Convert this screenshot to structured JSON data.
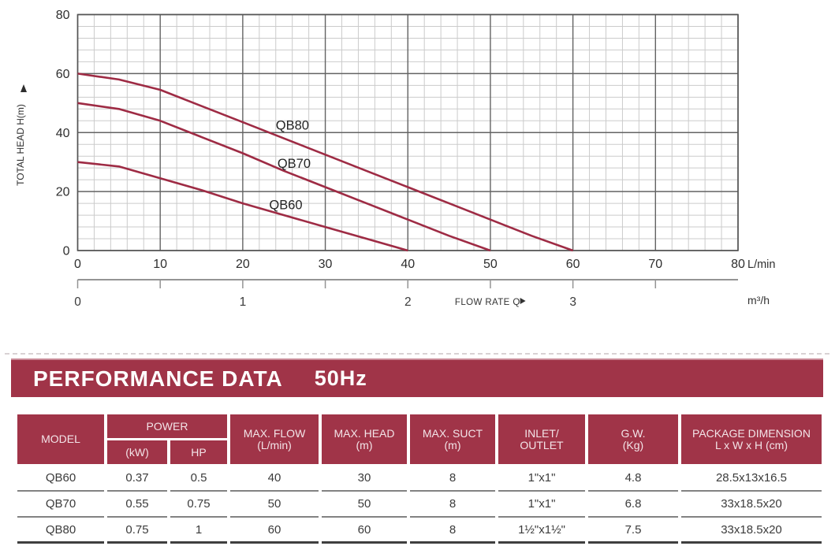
{
  "colors": {
    "maroon": "#a03448",
    "curve": "#9e2b44",
    "grid_minor": "#cbcbcb",
    "grid_major": "#636363",
    "plot_border": "#555555",
    "axis_text": "#2e2e2e",
    "secondary_axis": "#949494",
    "header_text": "#f3e4e8"
  },
  "chart_data": {
    "type": "line",
    "title": "",
    "ylabel": "TOTAL HEAD H(m)",
    "xlabel": "FLOW RATE Q",
    "x_unit_primary": "L/min",
    "x_unit_secondary": "m³/h",
    "xlim": [
      0,
      80
    ],
    "ylim": [
      0,
      80
    ],
    "x_major_ticks": [
      0,
      10,
      20,
      30,
      40,
      50,
      60,
      70,
      80
    ],
    "y_major_ticks": [
      0,
      20,
      40,
      60,
      80
    ],
    "x_minor_step": 2,
    "y_minor_step": 4,
    "grid": true,
    "legend": "inline-labels",
    "secondary_x": {
      "tick_positions_lmin": [
        0,
        10,
        20,
        30,
        40,
        50,
        60,
        70
      ],
      "labels": [
        {
          "value": "0",
          "at_lmin": 0
        },
        {
          "value": "1",
          "at_lmin": 20
        },
        {
          "value": "2",
          "at_lmin": 40
        },
        {
          "value": "3",
          "at_lmin": 60
        }
      ]
    },
    "series": [
      {
        "name": "QB80",
        "x": [
          0,
          5,
          10,
          15,
          20,
          25,
          30,
          35,
          40,
          45,
          50,
          55,
          60
        ],
        "y": [
          60,
          58,
          54.5,
          49,
          43.5,
          38,
          32.5,
          27,
          21.5,
          16,
          10.5,
          5,
          0
        ],
        "label_at": {
          "x": 24,
          "y": 41
        }
      },
      {
        "name": "QB70",
        "x": [
          0,
          5,
          10,
          15,
          20,
          25,
          30,
          35,
          40,
          45,
          50
        ],
        "y": [
          50,
          48,
          44,
          38.5,
          33,
          27,
          21.5,
          16,
          10.5,
          5,
          0
        ],
        "label_at": {
          "x": 24.2,
          "y": 28
        }
      },
      {
        "name": "QB60",
        "x": [
          0,
          5,
          10,
          15,
          20,
          25,
          30,
          35,
          40
        ],
        "y": [
          30,
          28.5,
          24.5,
          20.5,
          16,
          12,
          8,
          4,
          0
        ],
        "label_at": {
          "x": 23.2,
          "y": 14
        }
      }
    ]
  },
  "table": {
    "banner": {
      "title": "PERFORMANCE DATA",
      "frequency": "50Hz"
    },
    "header": {
      "model": "MODEL",
      "power": "POWER",
      "power_kw": "(kW)",
      "power_hp": "HP",
      "max_flow_1": "MAX. FLOW",
      "max_flow_2": "(L/min)",
      "max_head_1": "MAX. HEAD",
      "max_head_2": "(m)",
      "max_suct_1": "MAX. SUCT",
      "max_suct_2": "(m)",
      "inlet_1": "INLET/",
      "inlet_2": "OUTLET",
      "gw_1": "G.W.",
      "gw_2": "(Kg)",
      "package_1": "PACKAGE DIMENSION",
      "package_2": "L x W x H (cm)"
    },
    "rows": [
      {
        "model": "QB60",
        "kw": "0.37",
        "hp": "0.5",
        "max_flow": "40",
        "max_head": "30",
        "max_suct": "8",
        "inlet_outlet": "1\"x1\"",
        "gw": "4.8",
        "package": "28.5x13x16.5"
      },
      {
        "model": "QB70",
        "kw": "0.55",
        "hp": "0.75",
        "max_flow": "50",
        "max_head": "50",
        "max_suct": "8",
        "inlet_outlet": "1\"x1\"",
        "gw": "6.8",
        "package": "33x18.5x20"
      },
      {
        "model": "QB80",
        "kw": "0.75",
        "hp": "1",
        "max_flow": "60",
        "max_head": "60",
        "max_suct": "8",
        "inlet_outlet": "1½\"x1½\"",
        "gw": "7.5",
        "package": "33x18.5x20"
      }
    ]
  }
}
